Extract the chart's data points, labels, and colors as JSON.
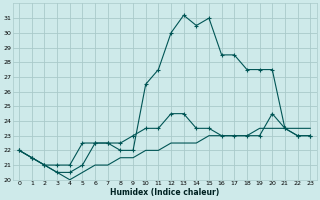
{
  "xlabel": "Humidex (Indice chaleur)",
  "background_color": "#ceeaea",
  "grid_color": "#aacaca",
  "line_color": "#005555",
  "xlim": [
    -0.5,
    23.5
  ],
  "ylim": [
    20,
    32
  ],
  "yticks": [
    20,
    21,
    22,
    23,
    24,
    25,
    26,
    27,
    28,
    29,
    30,
    31
  ],
  "xticks": [
    0,
    1,
    2,
    3,
    4,
    5,
    6,
    7,
    8,
    9,
    10,
    11,
    12,
    13,
    14,
    15,
    16,
    17,
    18,
    19,
    20,
    21,
    22,
    23
  ],
  "series": [
    {
      "x": [
        0,
        1,
        2,
        3,
        4,
        5,
        6,
        7,
        8,
        9,
        10,
        11,
        12,
        13,
        14,
        15,
        16,
        17,
        18,
        19,
        20,
        21,
        22,
        23
      ],
      "y": [
        22.0,
        21.5,
        21.0,
        21.0,
        21.0,
        22.5,
        22.5,
        22.5,
        22.0,
        22.0,
        26.5,
        27.5,
        30.0,
        31.2,
        30.5,
        31.0,
        28.5,
        28.5,
        27.5,
        27.5,
        27.5,
        23.5,
        23.0,
        23.0
      ],
      "marker": true
    },
    {
      "x": [
        0,
        1,
        2,
        3,
        4,
        5,
        6,
        7,
        8,
        9,
        10,
        11,
        12,
        13,
        14,
        15,
        16,
        17,
        18,
        19,
        20,
        21,
        22,
        23
      ],
      "y": [
        22.0,
        21.5,
        21.0,
        20.5,
        20.5,
        21.0,
        22.5,
        22.5,
        22.5,
        23.0,
        23.5,
        23.5,
        24.5,
        24.5,
        23.5,
        23.5,
        23.0,
        23.0,
        23.0,
        23.0,
        24.5,
        23.5,
        23.0,
        23.0
      ],
      "marker": true
    },
    {
      "x": [
        0,
        1,
        2,
        3,
        4,
        5,
        6,
        7,
        8,
        9,
        10,
        11,
        12,
        13,
        14,
        15,
        16,
        17,
        18,
        19,
        20,
        21,
        22,
        23
      ],
      "y": [
        22.0,
        21.5,
        21.0,
        20.5,
        20.0,
        20.5,
        21.0,
        21.0,
        21.5,
        21.5,
        22.0,
        22.0,
        22.5,
        22.5,
        22.5,
        23.0,
        23.0,
        23.0,
        23.0,
        23.5,
        23.5,
        23.5,
        23.5,
        23.5
      ],
      "marker": false
    }
  ]
}
